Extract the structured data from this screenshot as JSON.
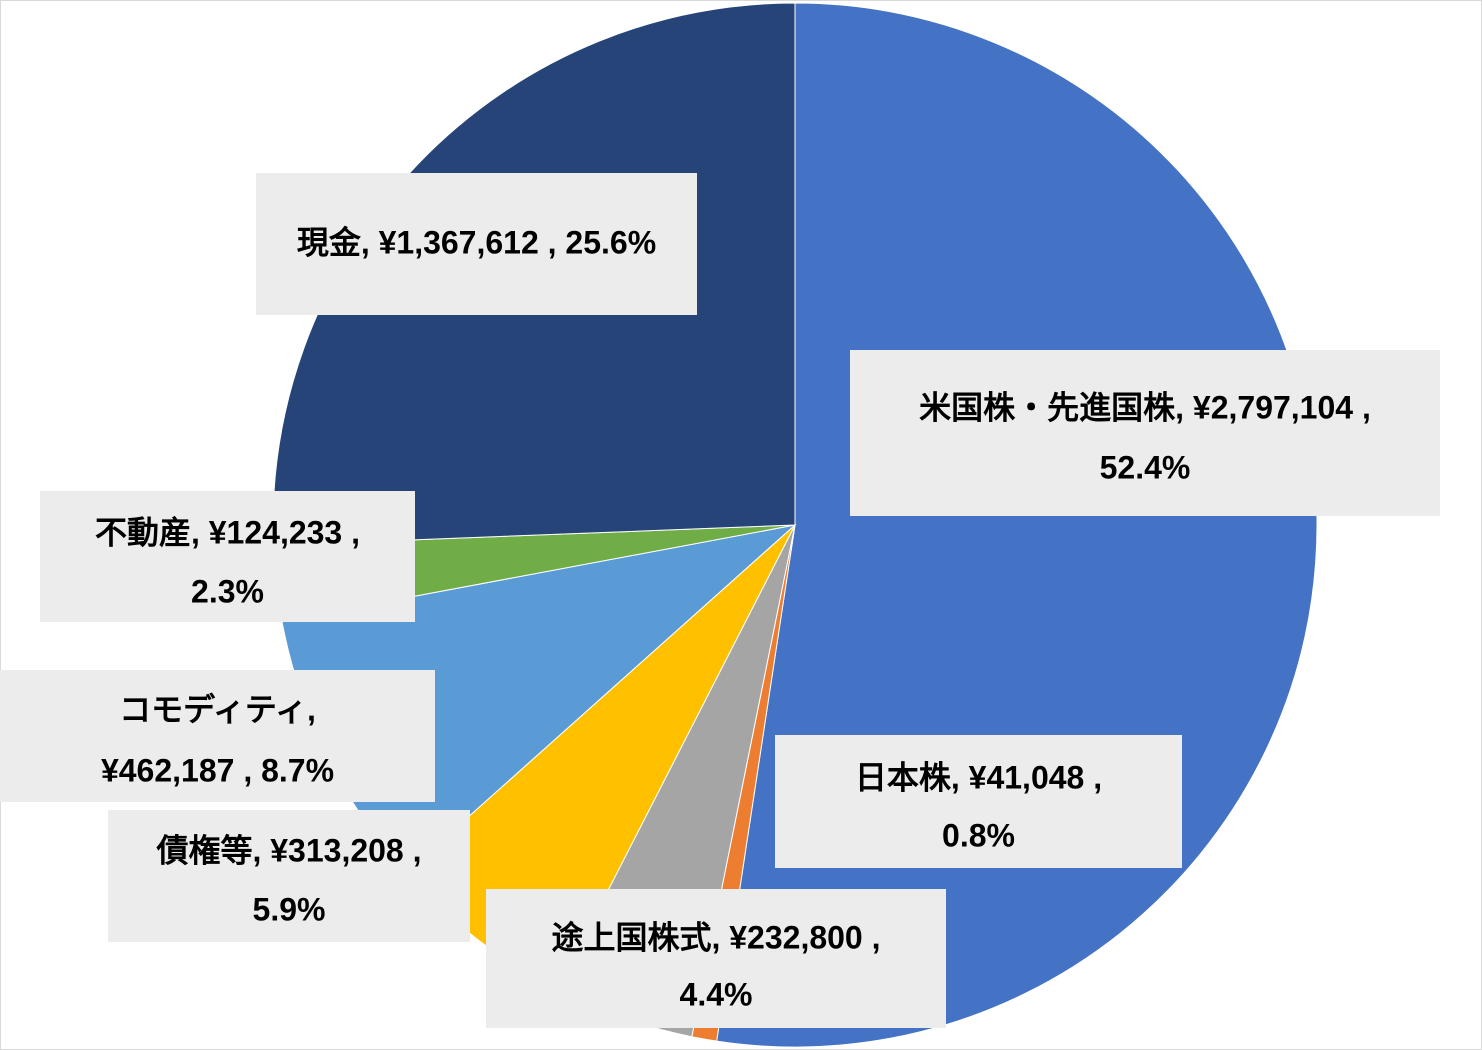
{
  "chart_data": {
    "type": "pie",
    "categories": [
      "米国株・先進国株",
      "日本株",
      "途上国株式",
      "債権等",
      "コモディティ",
      "不動産",
      "現金"
    ],
    "values": [
      2797104,
      41048,
      232800,
      313208,
      462187,
      124233,
      1367612
    ],
    "colors": [
      "#4472c4",
      "#ed7d31",
      "#a5a5a5",
      "#ffc000",
      "#5b9bd5",
      "#70ad47",
      "#264478"
    ],
    "data_labels": [
      [
        "米国株・先進国株, ¥2,797,104 ,",
        "52.4%"
      ],
      [
        "日本株, ¥41,048 ,",
        "0.8%"
      ],
      [
        "途上国株式, ¥232,800 ,",
        "4.4%"
      ],
      [
        "債権等, ¥313,208 ,",
        "5.9%"
      ],
      [
        "コモディティ,",
        "¥462,187 , 8.7%"
      ],
      [
        "不動産, ¥124,233 ,",
        "2.3%"
      ],
      [
        "現金, ¥1,367,612 , 25.6%"
      ]
    ]
  }
}
